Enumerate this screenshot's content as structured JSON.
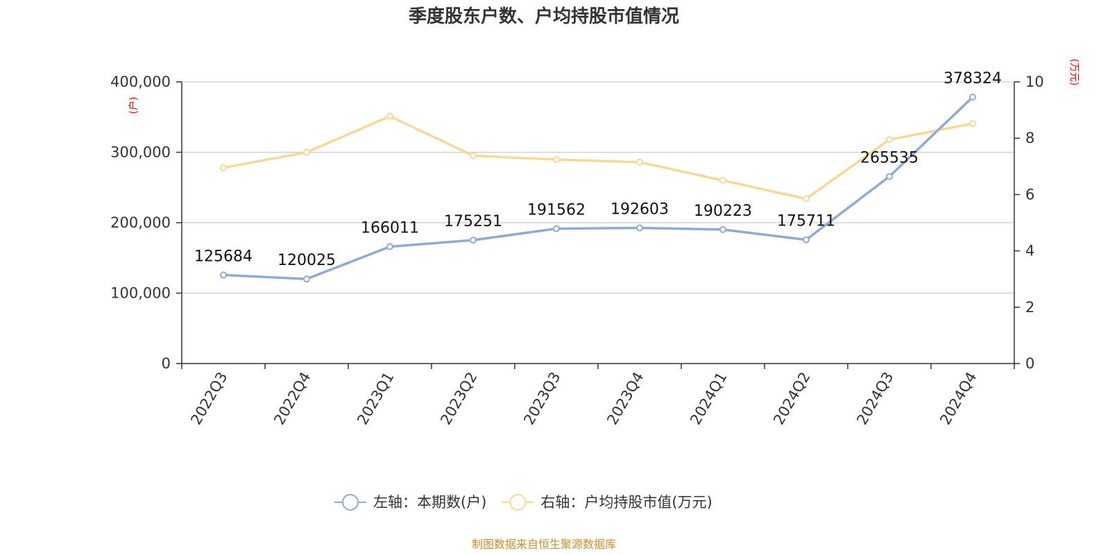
{
  "chart_data": {
    "type": "line",
    "title": "季度股东户数、户均持股市值情况",
    "categories": [
      "2022Q3",
      "2022Q4",
      "2023Q1",
      "2023Q2",
      "2023Q3",
      "2023Q4",
      "2024Q1",
      "2024Q2",
      "2024Q3",
      "2024Q4"
    ],
    "left_axis": {
      "unit": "(户)",
      "ylim": [
        0,
        400000
      ],
      "ticks": [
        0,
        100000,
        200000,
        300000,
        400000
      ],
      "tick_labels": [
        "0",
        "100,000",
        "200,000",
        "300,000",
        "400,000"
      ]
    },
    "right_axis": {
      "unit": "(万元)",
      "ylim": [
        0,
        10
      ],
      "ticks": [
        0,
        2,
        4,
        6,
        8,
        10
      ],
      "tick_labels": [
        "0",
        "2",
        "4",
        "6",
        "8",
        "10"
      ]
    },
    "series": [
      {
        "name": "左轴：本期数(户)",
        "axis": "left",
        "color": "#8eaad6",
        "values": [
          125684,
          120025,
          166011,
          175251,
          191562,
          192603,
          190223,
          175711,
          265535,
          378324
        ],
        "labels": [
          "125684",
          "120025",
          "166011",
          "175251",
          "191562",
          "192603",
          "190223",
          "175711",
          "265535",
          "378324"
        ]
      },
      {
        "name": "右轴：户均持股市值(万元)",
        "axis": "right",
        "color": "#f9d896",
        "values": [
          6.95,
          7.5,
          8.78,
          7.38,
          7.24,
          7.15,
          6.5,
          5.85,
          7.95,
          8.52
        ]
      }
    ],
    "grid": true,
    "legend": "bottom-center"
  },
  "source": "制图数据来自恒生聚源数据库"
}
